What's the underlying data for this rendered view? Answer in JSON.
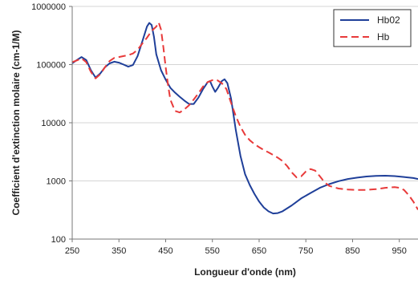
{
  "chart_data": {
    "type": "line",
    "title": "",
    "xlabel": "Longueur d'onde (nm)",
    "ylabel": "Coefficient d'extinction molaire (cm-1/M)",
    "xlim": [
      250,
      990
    ],
    "ylim": [
      100,
      1000000
    ],
    "yscale": "log",
    "x_ticks": [
      250,
      350,
      450,
      550,
      650,
      750,
      850,
      950
    ],
    "x_tick_labels": [
      "250",
      "350",
      "450",
      "550",
      "650",
      "750",
      "850",
      "950"
    ],
    "y_ticks": [
      100,
      1000,
      10000,
      100000,
      1000000
    ],
    "y_tick_labels": [
      "100",
      "1000",
      "10000",
      "100000",
      "1000000"
    ],
    "grid": "horizontal",
    "legend_position": "top-right",
    "series": [
      {
        "name": "Hb02",
        "color": "#1f3f99",
        "dash": "solid",
        "points": [
          [
            250,
            105000
          ],
          [
            260,
            120000
          ],
          [
            270,
            135000
          ],
          [
            280,
            120000
          ],
          [
            290,
            80000
          ],
          [
            300,
            60000
          ],
          [
            310,
            70000
          ],
          [
            320,
            90000
          ],
          [
            330,
            105000
          ],
          [
            340,
            112000
          ],
          [
            350,
            108000
          ],
          [
            360,
            100000
          ],
          [
            370,
            92000
          ],
          [
            380,
            98000
          ],
          [
            390,
            140000
          ],
          [
            400,
            250000
          ],
          [
            410,
            450000
          ],
          [
            415,
            520000
          ],
          [
            420,
            480000
          ],
          [
            425,
            300000
          ],
          [
            430,
            150000
          ],
          [
            440,
            80000
          ],
          [
            450,
            55000
          ],
          [
            460,
            40000
          ],
          [
            470,
            33000
          ],
          [
            480,
            28000
          ],
          [
            490,
            24000
          ],
          [
            500,
            21000
          ],
          [
            510,
            21000
          ],
          [
            520,
            27000
          ],
          [
            530,
            38000
          ],
          [
            540,
            50000
          ],
          [
            545,
            52000
          ],
          [
            550,
            42000
          ],
          [
            556,
            34000
          ],
          [
            562,
            40000
          ],
          [
            570,
            52000
          ],
          [
            576,
            56000
          ],
          [
            582,
            48000
          ],
          [
            590,
            26000
          ],
          [
            600,
            7500
          ],
          [
            610,
            2700
          ],
          [
            620,
            1300
          ],
          [
            630,
            850
          ],
          [
            640,
            600
          ],
          [
            650,
            440
          ],
          [
            660,
            350
          ],
          [
            670,
            300
          ],
          [
            680,
            275
          ],
          [
            690,
            280
          ],
          [
            700,
            300
          ],
          [
            720,
            380
          ],
          [
            740,
            500
          ],
          [
            760,
            620
          ],
          [
            780,
            760
          ],
          [
            800,
            880
          ],
          [
            820,
            990
          ],
          [
            840,
            1080
          ],
          [
            860,
            1140
          ],
          [
            880,
            1190
          ],
          [
            900,
            1220
          ],
          [
            920,
            1230
          ],
          [
            940,
            1210
          ],
          [
            960,
            1170
          ],
          [
            980,
            1120
          ],
          [
            990,
            1080
          ]
        ]
      },
      {
        "name": "Hb",
        "color": "#e83a3a",
        "dash": "dashed",
        "points": [
          [
            250,
            110000
          ],
          [
            260,
            118000
          ],
          [
            270,
            128000
          ],
          [
            280,
            110000
          ],
          [
            290,
            75000
          ],
          [
            300,
            58000
          ],
          [
            310,
            68000
          ],
          [
            320,
            90000
          ],
          [
            330,
            115000
          ],
          [
            340,
            130000
          ],
          [
            350,
            135000
          ],
          [
            360,
            140000
          ],
          [
            370,
            145000
          ],
          [
            380,
            155000
          ],
          [
            390,
            180000
          ],
          [
            400,
            230000
          ],
          [
            410,
            290000
          ],
          [
            420,
            380000
          ],
          [
            430,
            450000
          ],
          [
            435,
            530000
          ],
          [
            440,
            400000
          ],
          [
            445,
            200000
          ],
          [
            450,
            90000
          ],
          [
            455,
            45000
          ],
          [
            460,
            25000
          ],
          [
            470,
            16000
          ],
          [
            480,
            15000
          ],
          [
            490,
            17000
          ],
          [
            500,
            20000
          ],
          [
            510,
            25000
          ],
          [
            520,
            32000
          ],
          [
            530,
            42000
          ],
          [
            540,
            50000
          ],
          [
            550,
            54000
          ],
          [
            560,
            54000
          ],
          [
            570,
            48000
          ],
          [
            580,
            38000
          ],
          [
            590,
            22000
          ],
          [
            600,
            13000
          ],
          [
            610,
            8500
          ],
          [
            620,
            6200
          ],
          [
            630,
            5000
          ],
          [
            640,
            4300
          ],
          [
            650,
            3800
          ],
          [
            660,
            3400
          ],
          [
            670,
            3100
          ],
          [
            680,
            2800
          ],
          [
            690,
            2500
          ],
          [
            700,
            2200
          ],
          [
            710,
            1800
          ],
          [
            720,
            1400
          ],
          [
            730,
            1150
          ],
          [
            740,
            1200
          ],
          [
            750,
            1450
          ],
          [
            760,
            1600
          ],
          [
            770,
            1500
          ],
          [
            780,
            1200
          ],
          [
            790,
            950
          ],
          [
            800,
            820
          ],
          [
            820,
            740
          ],
          [
            840,
            710
          ],
          [
            860,
            700
          ],
          [
            880,
            700
          ],
          [
            900,
            720
          ],
          [
            920,
            760
          ],
          [
            940,
            780
          ],
          [
            950,
            760
          ],
          [
            960,
            700
          ],
          [
            970,
            570
          ],
          [
            980,
            440
          ],
          [
            990,
            320
          ]
        ]
      }
    ]
  }
}
